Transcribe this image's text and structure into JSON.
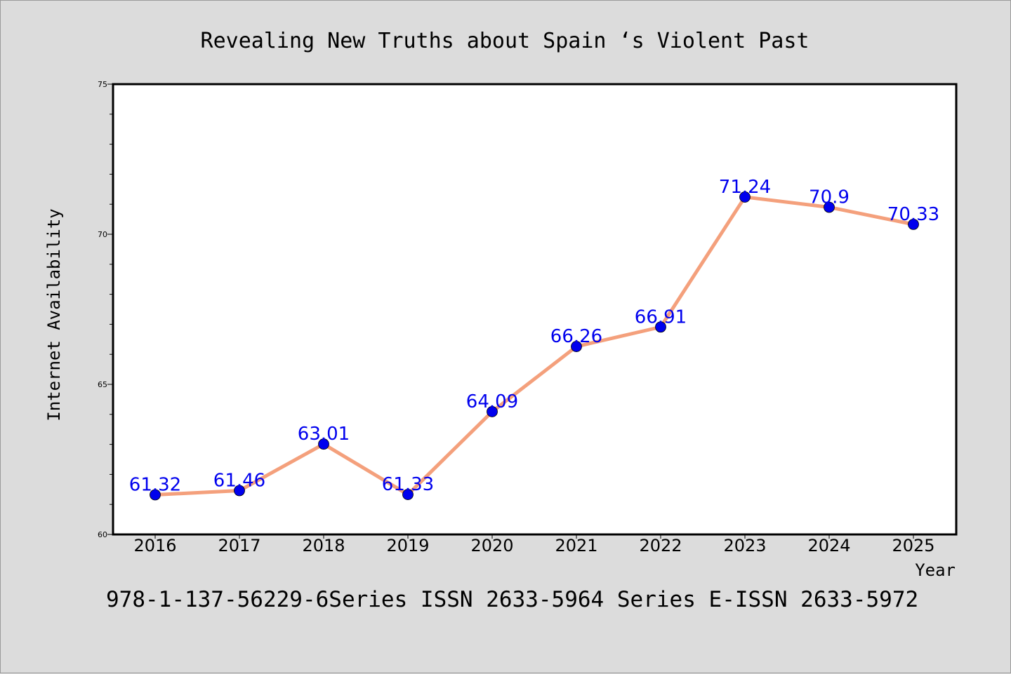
{
  "chart_data": {
    "type": "line",
    "title": "Revealing New Truths about Spain ‘s Violent Past",
    "xlabel": "Year",
    "ylabel": "Internet Availability",
    "categories": [
      "2016",
      "2017",
      "2018",
      "2019",
      "2020",
      "2021",
      "2022",
      "2023",
      "2024",
      "2025"
    ],
    "series": [
      {
        "values": [
          61.32,
          61.46,
          63.01,
          61.33,
          64.09,
          66.26,
          66.91,
          71.24,
          70.9,
          70.33
        ]
      }
    ],
    "data_labels": [
      "61.32",
      "61.46",
      "63.01",
      "61.33",
      "64.09",
      "66.26",
      "66.91",
      "71.24",
      "70.9",
      "70.33"
    ],
    "ylim": [
      60,
      75
    ],
    "yticks": [
      "60",
      "65",
      "70",
      "75"
    ],
    "grid": false,
    "line_color": "#f4a07c",
    "marker_color": "#0000ee",
    "label_color": "#0000ee",
    "background_color": "#dcdcdc",
    "plot_background_color": "#ffffff"
  },
  "footer": {
    "text": "978-1-137-56229-6Series ISSN 2633-5964 Series E-ISSN 2633-5972"
  }
}
